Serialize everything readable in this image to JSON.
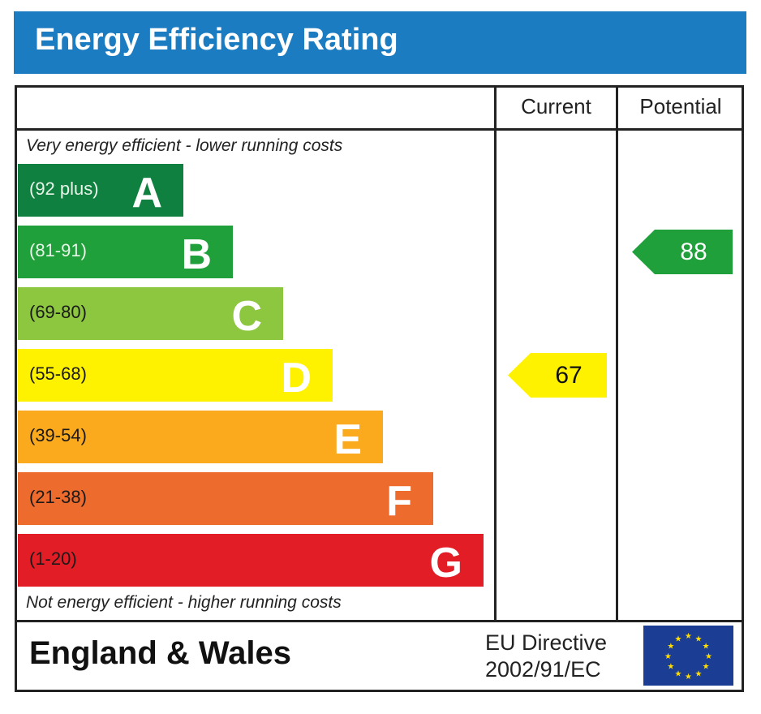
{
  "title": "Energy Efficiency Rating",
  "chart_data": {
    "type": "bar",
    "title": "Energy Efficiency Rating",
    "columns": {
      "current": "Current",
      "potential": "Potential"
    },
    "top_note": "Very energy efficient - lower running costs",
    "bottom_note": "Not energy efficient - higher running costs",
    "bands": [
      {
        "letter": "A",
        "range": "(92 plus)",
        "color": "#0f8040",
        "text_color": "#e8f5e8"
      },
      {
        "letter": "B",
        "range": "(81-91)",
        "color": "#20a03a",
        "text_color": "#e8f5e8"
      },
      {
        "letter": "C",
        "range": "(69-80)",
        "color": "#8dc63f",
        "text_color": "#1a1a1a"
      },
      {
        "letter": "D",
        "range": "(55-68)",
        "color": "#fff200",
        "text_color": "#1a1a1a"
      },
      {
        "letter": "E",
        "range": "(39-54)",
        "color": "#fbaa1e",
        "text_color": "#1a1a1a"
      },
      {
        "letter": "F",
        "range": "(21-38)",
        "color": "#ec6b2d",
        "text_color": "#1a1a1a"
      },
      {
        "letter": "G",
        "range": "(1-20)",
        "color": "#e31d25",
        "text_color": "#1a1a1a"
      }
    ],
    "current": {
      "value": 67,
      "band": "D",
      "color": "#fff200"
    },
    "potential": {
      "value": 88,
      "band": "B",
      "color": "#20a03a"
    }
  },
  "footer": {
    "region": "England & Wales",
    "directive_line1": "EU Directive",
    "directive_line2": "2002/91/EC"
  }
}
